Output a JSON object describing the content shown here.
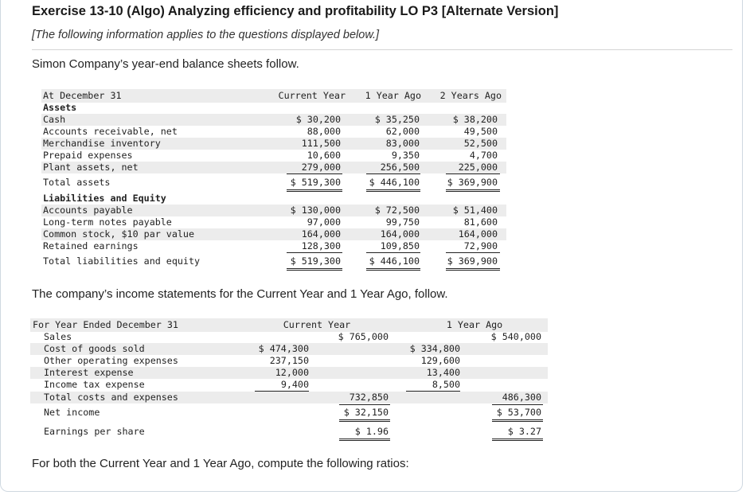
{
  "title": "Exercise 13-10 (Algo) Analyzing efficiency and profitability LO P3 [Alternate Version]",
  "subtitle": "[The following information applies to the questions displayed below.]",
  "intro_balance": "Simon Company’s year-end balance sheets follow.",
  "intro_income": "The company’s income statements for the Current Year and 1 Year Ago, follow.",
  "closing": "For both the Current Year and 1 Year Ago, compute the following ratios:",
  "balance_sheet": {
    "header": {
      "label": "At December 31",
      "col1": "Current Year",
      "col2": "1 Year Ago",
      "col3": "2 Years Ago"
    },
    "assets_heading": "Assets",
    "assets": [
      {
        "label": "Cash",
        "cy": "$ 30,200",
        "y1": "$ 35,250",
        "y2": "$ 38,200"
      },
      {
        "label": "Accounts receivable, net",
        "cy": "88,000",
        "y1": "62,000",
        "y2": "49,500"
      },
      {
        "label": "Merchandise inventory",
        "cy": "111,500",
        "y1": "83,000",
        "y2": "52,500"
      },
      {
        "label": "Prepaid expenses",
        "cy": "10,600",
        "y1": "9,350",
        "y2": "4,700"
      },
      {
        "label": "Plant assets, net",
        "cy": "279,000",
        "y1": "256,500",
        "y2": "225,000"
      }
    ],
    "total_assets": {
      "label": "Total assets",
      "cy": "$ 519,300",
      "y1": "$ 446,100",
      "y2": "$ 369,900"
    },
    "liab_heading": "Liabilities and Equity",
    "liabilities": [
      {
        "label": "Accounts payable",
        "cy": "$ 130,000",
        "y1": "$ 72,500",
        "y2": "$ 51,400"
      },
      {
        "label": "Long-term notes payable",
        "cy": "97,000",
        "y1": "99,750",
        "y2": "81,600"
      },
      {
        "label": "Common stock, $10 par value",
        "cy": "164,000",
        "y1": "164,000",
        "y2": "164,000"
      },
      {
        "label": "Retained earnings",
        "cy": "128,300",
        "y1": "109,850",
        "y2": "72,900"
      }
    ],
    "total_liab": {
      "label": "Total liabilities and equity",
      "cy": "$ 519,300",
      "y1": "$ 446,100",
      "y2": "$ 369,900"
    }
  },
  "income_statement": {
    "header": {
      "label": "For Year Ended December 31",
      "col1": "Current Year",
      "col2": "1 Year Ago"
    },
    "sales": {
      "label": "Sales",
      "cy": "$ 765,000",
      "y1": "$ 540,000"
    },
    "expenses": [
      {
        "label": "Cost of goods sold",
        "cy": "$ 474,300",
        "y1": "$ 334,800"
      },
      {
        "label": "Other operating expenses",
        "cy": "237,150",
        "y1": "129,600"
      },
      {
        "label": "Interest expense",
        "cy": "12,000",
        "y1": "13,400"
      },
      {
        "label": "Income tax expense",
        "cy": "9,400",
        "y1": "8,500"
      }
    ],
    "total_costs": {
      "label": "Total costs and expenses",
      "cy": "732,850",
      "y1": "486,300"
    },
    "net_income": {
      "label": "Net income",
      "cy": "$ 32,150",
      "y1": "$ 53,700"
    },
    "eps": {
      "label": "Earnings per share",
      "cy": "$ 1.96",
      "y1": "$ 3.27"
    }
  }
}
